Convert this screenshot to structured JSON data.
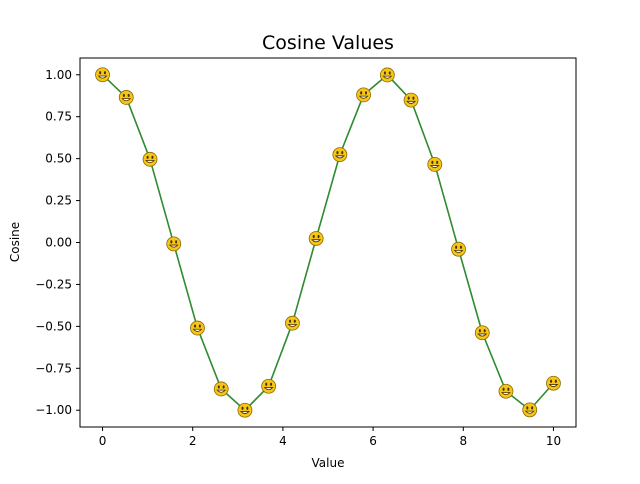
{
  "chart_data": {
    "type": "line",
    "title": "Cosine Values",
    "xlabel": "Value",
    "ylabel": "Cosine",
    "xlim": [
      -0.5,
      10.5
    ],
    "ylim": [
      -1.1,
      1.1
    ],
    "x_ticks": [
      "0",
      "2",
      "4",
      "6",
      "8",
      "10"
    ],
    "y_ticks": [
      "1.00",
      "0.75",
      "0.50",
      "0.25",
      "0.00",
      "−0.25",
      "−0.50",
      "−0.75",
      "−1.00"
    ],
    "grid": false,
    "legend": false,
    "line_color": "#2e8b2e",
    "marker": "smiley-face-emoji",
    "marker_color": "#f5c518",
    "series": [
      {
        "x": [
          0.0,
          0.526,
          1.053,
          1.579,
          2.105,
          2.632,
          3.158,
          3.684,
          4.211,
          4.737,
          5.263,
          5.789,
          6.316,
          6.842,
          7.368,
          7.895,
          8.421,
          8.947,
          9.474,
          10.0
        ],
        "y": [
          1.0,
          0.865,
          0.496,
          -0.008,
          -0.51,
          -0.873,
          -1.0,
          -0.857,
          -0.481,
          0.024,
          0.524,
          0.88,
          0.999,
          0.849,
          0.466,
          -0.04,
          -0.538,
          -0.887,
          -0.998,
          -0.839
        ]
      }
    ]
  }
}
